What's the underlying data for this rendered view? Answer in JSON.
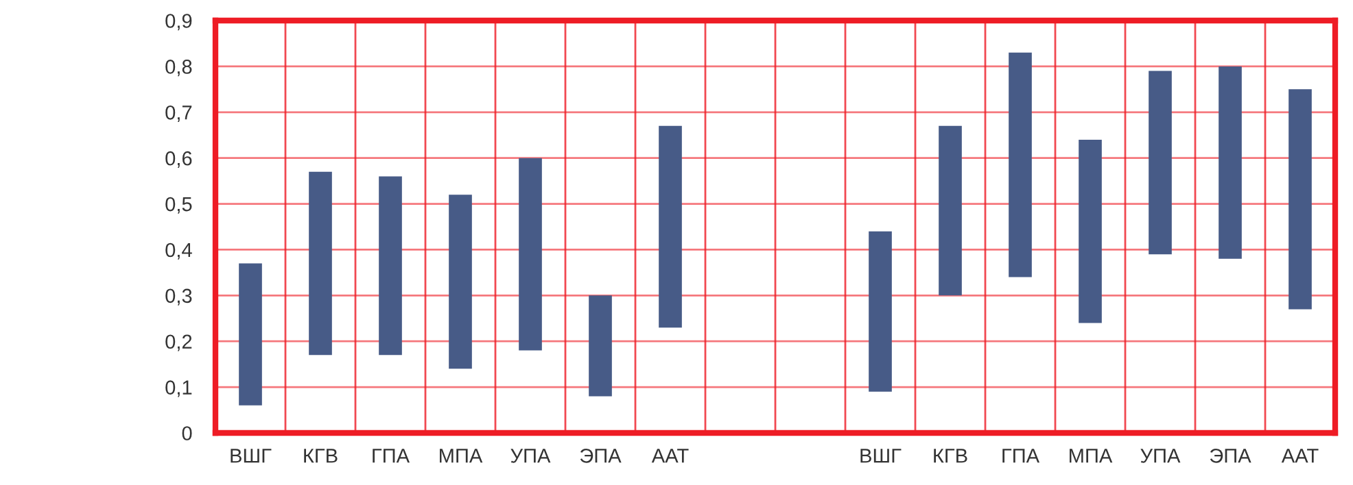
{
  "chart_data": {
    "type": "bar",
    "categories": [
      "ВШГ",
      "КГВ",
      "ГПА",
      "МПА",
      "УПА",
      "ЭПА",
      "ААТ",
      null,
      null,
      "ВШГ",
      "КГВ",
      "ГПА",
      "МПА",
      "УПА",
      "ЭПА",
      "ААТ"
    ],
    "base": [
      0.06,
      0.17,
      0.17,
      0.14,
      0.18,
      0.08,
      0.23,
      null,
      null,
      0.09,
      0.3,
      0.34,
      0.24,
      0.39,
      0.38,
      0.27
    ],
    "values": [
      0.31,
      0.4,
      0.39,
      0.38,
      0.42,
      0.22,
      0.44,
      null,
      null,
      0.35,
      0.37,
      0.49,
      0.4,
      0.4,
      0.42,
      0.48
    ],
    "color": "#475b87",
    "ylim": [
      0,
      0.9
    ],
    "yticks": [
      {
        "value": 0,
        "label": "0"
      },
      {
        "value": 0.1,
        "label": "0,1"
      },
      {
        "value": 0.2,
        "label": "0,2"
      },
      {
        "value": 0.3,
        "label": "0,3"
      },
      {
        "value": 0.4,
        "label": "0,4"
      },
      {
        "value": 0.5,
        "label": "0,5"
      },
      {
        "value": 0.6,
        "label": "0,6"
      },
      {
        "value": 0.7,
        "label": "0,7"
      },
      {
        "value": 0.8,
        "label": "0,8"
      },
      {
        "value": 0.9,
        "label": "0,9"
      }
    ],
    "grid": true
  }
}
